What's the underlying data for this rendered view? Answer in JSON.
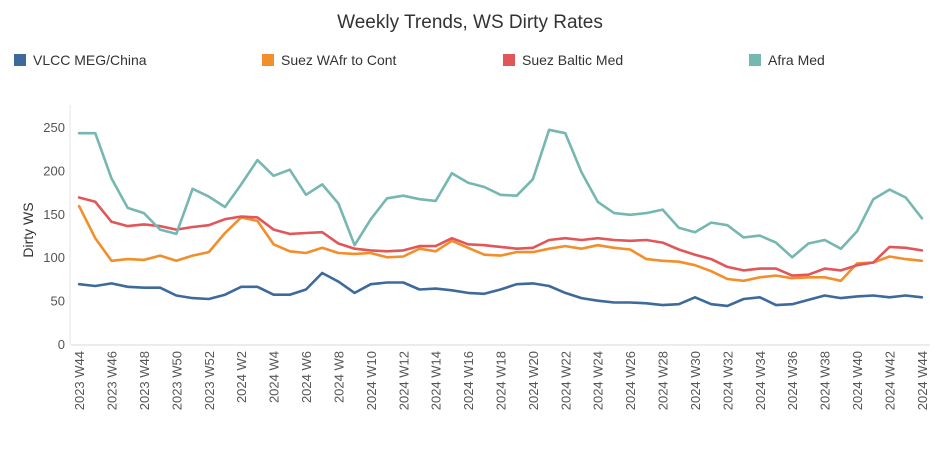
{
  "chart_data": {
    "type": "line",
    "title": "Weekly Trends, WS Dirty Rates",
    "xlabel": "",
    "ylabel": "Dirty WS",
    "ylim": [
      0,
      265
    ],
    "yticks": [
      0,
      50,
      100,
      150,
      200,
      250
    ],
    "grid": false,
    "legend_position": "top",
    "x": [
      "2023 W44",
      "2023 W45",
      "2023 W46",
      "2023 W47",
      "2023 W48",
      "2023 W49",
      "2023 W50",
      "2023 W51",
      "2023 W52",
      "2024 W1",
      "2024 W2",
      "2024 W3",
      "2024 W4",
      "2024 W5",
      "2024 W6",
      "2024 W7",
      "2024 W8",
      "2024 W9",
      "2024 W10",
      "2024 W11",
      "2024 W12",
      "2024 W13",
      "2024 W14",
      "2024 W15",
      "2024 W16",
      "2024 W17",
      "2024 W18",
      "2024 W19",
      "2024 W20",
      "2024 W21",
      "2024 W22",
      "2024 W23",
      "2024 W24",
      "2024 W25",
      "2024 W26",
      "2024 W27",
      "2024 W28",
      "2024 W29",
      "2024 W30",
      "2024 W31",
      "2024 W32",
      "2024 W33",
      "2024 W34",
      "2024 W35",
      "2024 W36",
      "2024 W37",
      "2024 W38",
      "2024 W39",
      "2024 W40",
      "2024 W41",
      "2024 W42",
      "2024 W43",
      "2024 W44"
    ],
    "tick_labels": [
      "2023 W44",
      "2023 W46",
      "2023 W48",
      "2023 W50",
      "2023 W52",
      "2024 W2",
      "2024 W4",
      "2024 W6",
      "2024 W8",
      "2024 W10",
      "2024 W12",
      "2024 W14",
      "2024 W16",
      "2024 W18",
      "2024 W20",
      "2024 W22",
      "2024 W24",
      "2024 W26",
      "2024 W28",
      "2024 W30",
      "2024 W32",
      "2024 W34",
      "2024 W36",
      "2024 W38",
      "2024 W40",
      "2024 W42",
      "2024 W44"
    ],
    "series": [
      {
        "name": "VLCC MEG/China",
        "color": "#3e6a9b",
        "values": [
          70,
          68,
          71,
          67,
          66,
          66,
          57,
          54,
          53,
          58,
          67,
          67,
          58,
          58,
          64,
          83,
          73,
          60,
          70,
          72,
          72,
          64,
          65,
          63,
          60,
          59,
          64,
          70,
          71,
          68,
          60,
          54,
          51,
          49,
          49,
          48,
          46,
          47,
          55,
          47,
          45,
          53,
          55,
          46,
          47,
          52,
          57,
          54,
          56,
          57,
          55,
          57,
          55
        ]
      },
      {
        "name": "Suez WAfr to Cont",
        "color": "#f28e2b",
        "values": [
          160,
          123,
          97,
          99,
          98,
          103,
          97,
          103,
          107,
          129,
          147,
          143,
          116,
          108,
          106,
          112,
          106,
          105,
          106,
          101,
          102,
          111,
          108,
          120,
          112,
          104,
          103,
          107,
          107,
          111,
          114,
          111,
          115,
          112,
          110,
          99,
          97,
          96,
          92,
          85,
          76,
          74,
          78,
          80,
          77,
          78,
          78,
          74,
          94,
          95,
          102,
          99,
          97
        ]
      },
      {
        "name": "Suez Baltic Med",
        "color": "#e15759",
        "values": [
          170,
          165,
          142,
          137,
          139,
          137,
          133,
          136,
          138,
          145,
          148,
          147,
          133,
          128,
          129,
          130,
          117,
          111,
          109,
          108,
          109,
          114,
          114,
          123,
          116,
          115,
          113,
          111,
          112,
          121,
          123,
          121,
          123,
          121,
          120,
          121,
          118,
          110,
          104,
          99,
          90,
          86,
          88,
          88,
          80,
          81,
          88,
          86,
          92,
          95,
          113,
          112,
          109
        ]
      },
      {
        "name": "Afra Med",
        "color": "#76b7b2",
        "values": [
          244,
          244,
          192,
          158,
          152,
          133,
          128,
          180,
          171,
          159,
          185,
          213,
          195,
          202,
          173,
          185,
          163,
          115,
          145,
          169,
          172,
          168,
          166,
          198,
          187,
          182,
          173,
          172,
          191,
          248,
          244,
          199,
          165,
          152,
          150,
          152,
          156,
          135,
          130,
          141,
          138,
          124,
          126,
          118,
          101,
          117,
          121,
          111,
          131,
          168,
          179,
          170,
          146
        ]
      }
    ]
  }
}
